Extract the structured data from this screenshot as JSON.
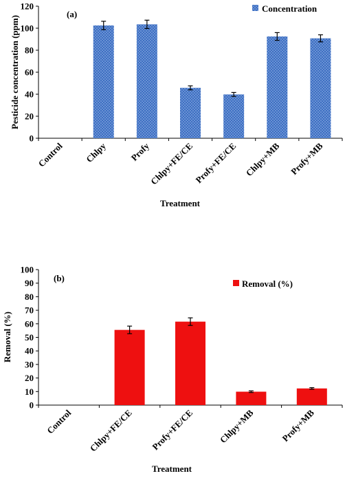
{
  "chart_data": [
    {
      "type": "bar",
      "panel_label": "(a)",
      "categories": [
        "Control",
        "Chlpy",
        "Profy",
        "Chlpy+FE/CE",
        "Profy+FE/CE",
        "Chlpy+MB",
        "Profy+MB"
      ],
      "series": [
        {
          "name": "Concentration",
          "values": [
            0,
            102.5,
            103.5,
            45.8,
            39.8,
            92.5,
            90.8
          ],
          "errors": [
            0,
            3.8,
            3.8,
            1.8,
            1.8,
            3.5,
            3.2
          ],
          "color": "#3d6fc2"
        }
      ],
      "xlabel": "Treatment",
      "ylabel": "Pesticide concentration (ppm)",
      "ylim": [
        0,
        120
      ],
      "yticks": [
        "0",
        "20",
        "40",
        "60",
        "80",
        "100",
        "120"
      ],
      "legend_position": "top-right",
      "grid": false
    },
    {
      "type": "bar",
      "panel_label": "(b)",
      "categories": [
        "Control",
        "Chlpy+FE/CE",
        "Profy+FE/CE",
        "Chlpy+MB",
        "Profy+MB"
      ],
      "series": [
        {
          "name": "Removal (%)",
          "values": [
            0,
            55.5,
            61.6,
            9.9,
            12.3
          ],
          "errors": [
            0,
            2.8,
            2.8,
            0.6,
            0.6
          ],
          "color": "#ee1010"
        }
      ],
      "xlabel": "Treatment",
      "ylabel": "Removal (%)",
      "ylim": [
        0,
        100
      ],
      "yticks": [
        "0",
        "10",
        "20",
        "30",
        "40",
        "50",
        "60",
        "70",
        "80",
        "90",
        "100"
      ],
      "legend_position": "top-right",
      "grid": false
    }
  ]
}
